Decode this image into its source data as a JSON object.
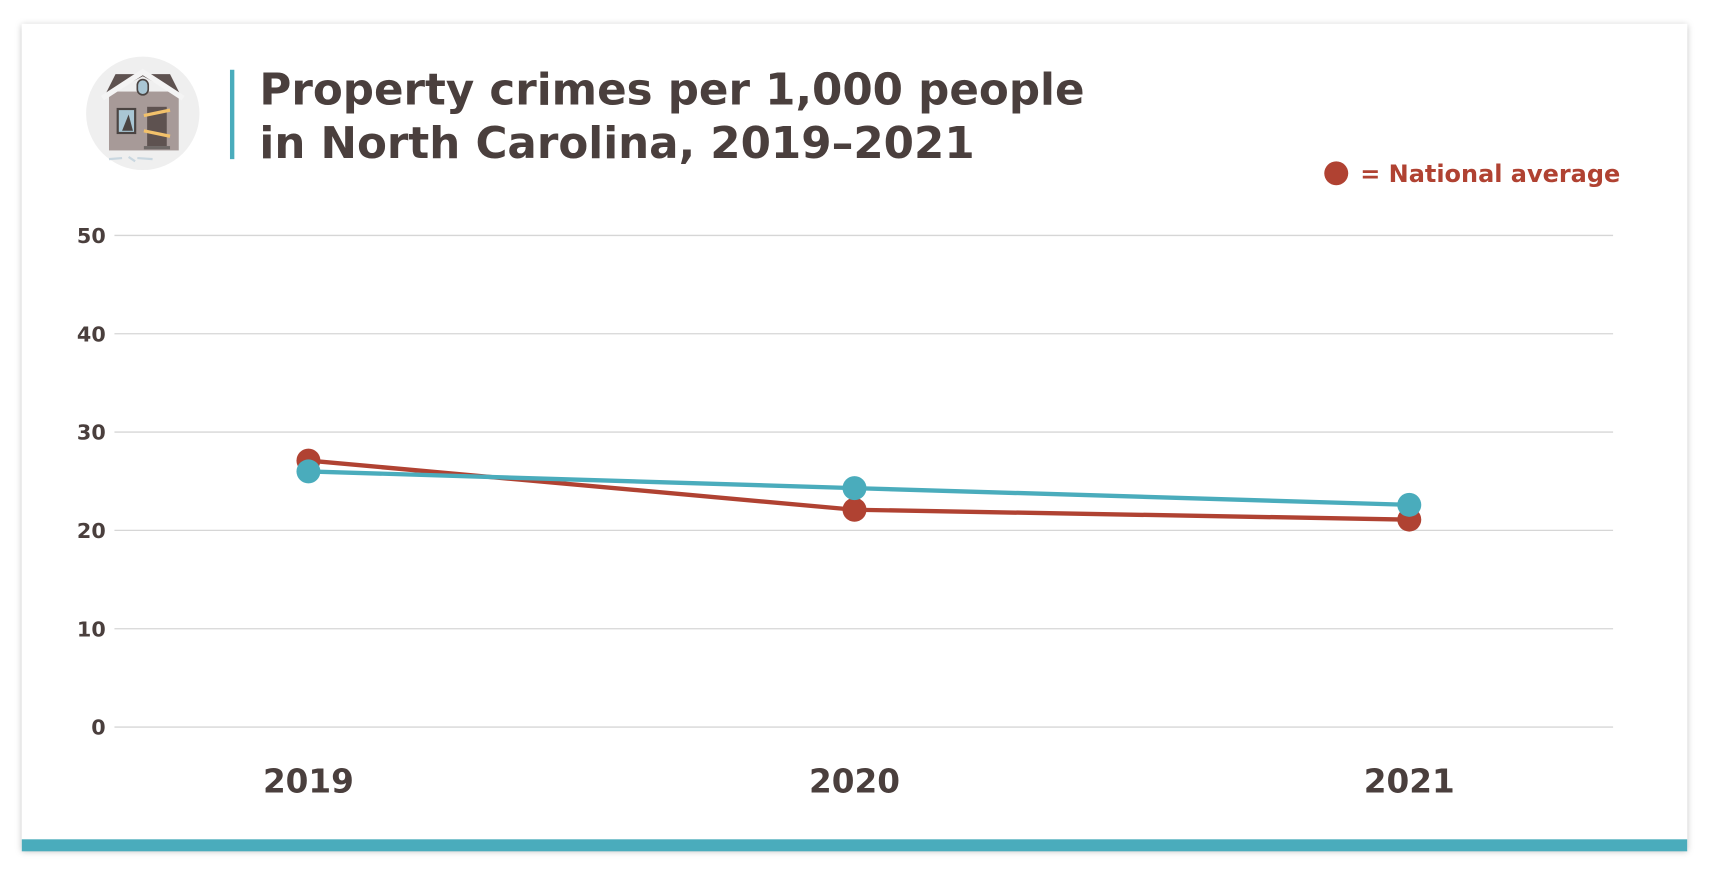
{
  "colors": {
    "state": "#4aacbc",
    "national": "#b04232",
    "text": "#4a3f3d",
    "grid": "#d6d6d6",
    "accent_bar": "#4aacbc"
  },
  "icon": "boarded-up-house-icon",
  "chart_data": {
    "type": "line",
    "title_lines": [
      "Property crimes per 1,000 people",
      "in North Carolina, 2019–2021"
    ],
    "categories": [
      "2019",
      "2020",
      "2021"
    ],
    "series": [
      {
        "key": "state",
        "values": [
          26.0,
          24.3,
          22.6
        ]
      },
      {
        "key": "national",
        "name": "= National average",
        "values": [
          27.1,
          22.1,
          21.1
        ]
      }
    ],
    "ylim": [
      0,
      50
    ],
    "yticks": [
      "0",
      "10",
      "20",
      "30",
      "40",
      "50"
    ],
    "grid": true,
    "legend_placement": "top-right"
  }
}
